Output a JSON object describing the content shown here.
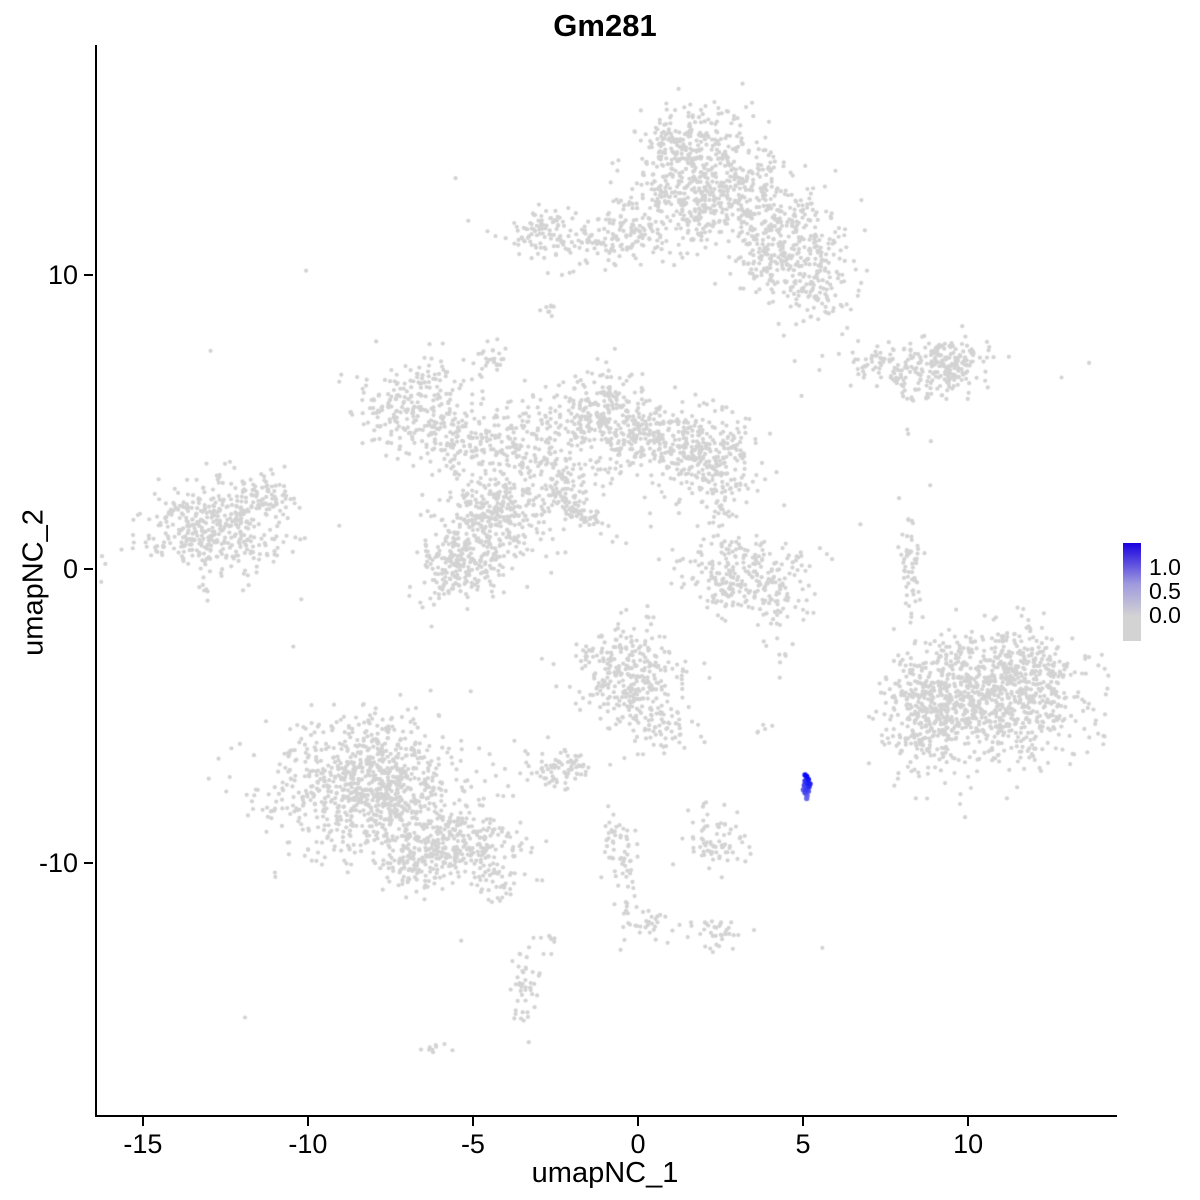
{
  "figure": {
    "title": "Gm281"
  },
  "legend": {
    "labels": [
      "1.0",
      "0.5",
      "0.0"
    ],
    "label_offsets": [
      0.24,
      0.49,
      0.73
    ],
    "color_high": "#1902e0",
    "color_mid": "#a09ade",
    "color_low": "#d3d3d3"
  },
  "chart_data": {
    "type": "scatter",
    "title": "Gm281",
    "xlabel": "umapNC_1",
    "ylabel": "umapNC_2",
    "xlim": [
      -16.45,
      14.45
    ],
    "ylim": [
      -18.55,
      17.8
    ],
    "x_ticks": [
      -15,
      -10,
      -5,
      0,
      5,
      10
    ],
    "y_ticks": [
      -10,
      0,
      10
    ],
    "grid": false,
    "legend_position": "right",
    "point_color": "#d3d3d3",
    "highlight_color": "#0000ff",
    "point_radius": 2.1,
    "value_range": [
      0,
      1.25
    ],
    "seed": 42,
    "clusters": [
      {
        "x": 1.8,
        "y": 13.6,
        "sx": 1.15,
        "sy": 1.0,
        "n": 420
      },
      {
        "x": 2.4,
        "y": 12.2,
        "sx": 1.3,
        "sy": 0.8,
        "n": 260
      },
      {
        "x": 1.2,
        "y": 14.6,
        "sx": 0.6,
        "sy": 0.4,
        "n": 60
      },
      {
        "x": 4.6,
        "y": 11.3,
        "sx": 0.8,
        "sy": 0.8,
        "n": 200
      },
      {
        "x": 5.3,
        "y": 9.6,
        "sx": 0.6,
        "sy": 0.7,
        "n": 120
      },
      {
        "x": 4.0,
        "y": 10.3,
        "sx": 0.5,
        "sy": 0.5,
        "n": 60
      },
      {
        "x": -1.7,
        "y": 11.1,
        "sx": 1.2,
        "sy": 0.45,
        "n": 130
      },
      {
        "x": -2.9,
        "y": 11.6,
        "sx": 0.4,
        "sy": 0.35,
        "n": 50
      },
      {
        "x": -0.3,
        "y": 11.6,
        "sx": 0.5,
        "sy": 0.4,
        "n": 60
      },
      {
        "x": -2.8,
        "y": 8.8,
        "sx": 0.12,
        "sy": 0.18,
        "n": 8
      },
      {
        "x": -4.6,
        "y": 7.2,
        "sx": 0.3,
        "sy": 0.35,
        "n": 26
      },
      {
        "x": 8.0,
        "y": 6.9,
        "sx": 0.9,
        "sy": 0.4,
        "n": 140
      },
      {
        "x": 9.4,
        "y": 7.0,
        "sx": 0.5,
        "sy": 0.45,
        "n": 130
      },
      {
        "x": 8.7,
        "y": 5.9,
        "sx": 0.4,
        "sy": 0.15,
        "n": 18
      },
      {
        "x": 8.0,
        "y": 4.7,
        "sx": 0.1,
        "sy": 0.1,
        "n": 2
      },
      {
        "x": -6.7,
        "y": 5.5,
        "sx": 0.95,
        "sy": 0.75,
        "n": 260
      },
      {
        "x": -5.6,
        "y": 4.2,
        "sx": 0.55,
        "sy": 0.5,
        "n": 90
      },
      {
        "x": -3.9,
        "y": 4.3,
        "sx": 0.6,
        "sy": 0.7,
        "n": 110
      },
      {
        "x": -1.3,
        "y": 5.2,
        "sx": 0.95,
        "sy": 0.75,
        "n": 300
      },
      {
        "x": 0.3,
        "y": 4.4,
        "sx": 0.7,
        "sy": 0.5,
        "n": 120
      },
      {
        "x": 1.9,
        "y": 3.9,
        "sx": 0.85,
        "sy": 0.75,
        "n": 300
      },
      {
        "x": -2.7,
        "y": 2.9,
        "sx": 0.8,
        "sy": 0.6,
        "n": 140
      },
      {
        "x": -4.4,
        "y": 1.6,
        "sx": 0.75,
        "sy": 0.85,
        "n": 320
      },
      {
        "x": -5.6,
        "y": 0.2,
        "sx": 0.6,
        "sy": 0.65,
        "n": 200
      },
      {
        "x": -1.9,
        "y": 2.0,
        "sx": 0.55,
        "sy": 0.16,
        "n": 60,
        "rot": -38
      },
      {
        "x": 2.6,
        "y": 2.4,
        "sx": 0.3,
        "sy": 0.6,
        "n": 40
      },
      {
        "x": -12.9,
        "y": 1.3,
        "sx": 1.1,
        "sy": 0.8,
        "n": 420
      },
      {
        "x": -11.4,
        "y": 2.5,
        "sx": 0.45,
        "sy": 0.4,
        "n": 70
      },
      {
        "x": 3.2,
        "y": 0.1,
        "sx": 1.0,
        "sy": 0.55,
        "n": 170
      },
      {
        "x": 4.1,
        "y": -1.0,
        "sx": 0.5,
        "sy": 0.5,
        "n": 60
      },
      {
        "x": 2.6,
        "y": -0.9,
        "sx": 0.4,
        "sy": 0.4,
        "n": 50
      },
      {
        "x": 8.2,
        "y": 0.3,
        "sx": 0.15,
        "sy": 0.9,
        "n": 55
      },
      {
        "x": 10.6,
        "y": -4.5,
        "sx": 1.45,
        "sy": 1.15,
        "n": 850
      },
      {
        "x": 8.7,
        "y": -4.8,
        "sx": 0.6,
        "sy": 1.0,
        "n": 220
      },
      {
        "x": 11.5,
        "y": -3.2,
        "sx": 0.9,
        "sy": 0.6,
        "n": 150
      },
      {
        "x": -0.4,
        "y": -3.6,
        "sx": 0.75,
        "sy": 0.85,
        "n": 300
      },
      {
        "x": 0.6,
        "y": -5.2,
        "sx": 0.5,
        "sy": 0.5,
        "n": 70
      },
      {
        "x": 3.7,
        "y": -5.3,
        "sx": 0.15,
        "sy": 0.2,
        "n": 5
      },
      {
        "x": 4.1,
        "y": -2.5,
        "sx": 0.3,
        "sy": 0.5,
        "n": 10
      },
      {
        "x": -2.5,
        "y": -6.8,
        "sx": 0.5,
        "sy": 0.35,
        "n": 80
      },
      {
        "x": -8.2,
        "y": -7.4,
        "sx": 1.5,
        "sy": 1.15,
        "n": 950
      },
      {
        "x": -5.3,
        "y": -9.4,
        "sx": 0.9,
        "sy": 0.6,
        "n": 260
      },
      {
        "x": -6.8,
        "y": -10.1,
        "sx": 0.5,
        "sy": 0.4,
        "n": 90
      },
      {
        "x": -4.3,
        "y": -10.9,
        "sx": 0.3,
        "sy": 0.3,
        "n": 25
      },
      {
        "x": 2.3,
        "y": -9.4,
        "sx": 0.4,
        "sy": 0.45,
        "n": 60
      },
      {
        "x": -0.7,
        "y": -9.2,
        "sx": 0.25,
        "sy": 0.55,
        "n": 35
      },
      {
        "x": -0.4,
        "y": -10.9,
        "sx": 0.15,
        "sy": 0.75,
        "n": 35
      },
      {
        "x": 0.3,
        "y": -12.1,
        "sx": 0.3,
        "sy": 0.3,
        "n": 25
      },
      {
        "x": 2.3,
        "y": -12.4,
        "sx": 0.4,
        "sy": 0.3,
        "n": 35
      },
      {
        "x": 2.0,
        "y": -8.5,
        "sx": 0.25,
        "sy": 0.3,
        "n": 14
      },
      {
        "x": -3.5,
        "y": -14.3,
        "sx": 0.2,
        "sy": 0.75,
        "n": 45
      },
      {
        "x": -6.3,
        "y": -16.2,
        "sx": 0.25,
        "sy": 0.15,
        "n": 9
      },
      {
        "x": -2.9,
        "y": -12.6,
        "sx": 0.2,
        "sy": 0.2,
        "n": 8
      },
      {
        "x": 0.0,
        "y": 0.0,
        "sx": 8.0,
        "sy": 7.0,
        "n": 40
      }
    ],
    "highlight_points": [
      {
        "x": 5.0,
        "y": -7.0,
        "v": 1.15
      },
      {
        "x": 5.05,
        "y": -7.05,
        "v": 1.2
      },
      {
        "x": 5.1,
        "y": -7.15,
        "v": 1.1
      },
      {
        "x": 5.0,
        "y": -7.2,
        "v": 0.9
      },
      {
        "x": 5.15,
        "y": -7.3,
        "v": 1.05
      },
      {
        "x": 5.08,
        "y": -7.3,
        "v": 1.0
      },
      {
        "x": 4.98,
        "y": -7.35,
        "v": 0.8
      },
      {
        "x": 5.12,
        "y": -7.4,
        "v": 0.95
      },
      {
        "x": 5.03,
        "y": -7.5,
        "v": 0.85
      },
      {
        "x": 4.95,
        "y": -7.5,
        "v": 0.65
      },
      {
        "x": 5.1,
        "y": -7.55,
        "v": 0.7
      },
      {
        "x": 5.0,
        "y": -7.6,
        "v": 0.75
      },
      {
        "x": 5.06,
        "y": -7.7,
        "v": 0.6
      },
      {
        "x": 5.05,
        "y": -7.8,
        "v": 0.55
      }
    ]
  }
}
